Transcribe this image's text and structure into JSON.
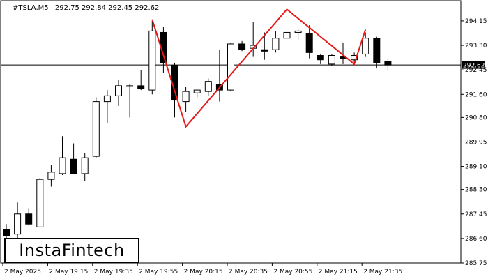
{
  "header": {
    "symbol": "#TSLA,M5",
    "ohlc": "292.75 292.84 292.45 292.62"
  },
  "logo": {
    "text": "InstaFintech"
  },
  "colors": {
    "pattern_line": "#e61919",
    "candle_up": "#ffffff",
    "candle_down": "#000000",
    "axis": "#000000"
  },
  "chart_data": {
    "type": "candlestick",
    "title": "",
    "xlabel": "",
    "ylabel": "",
    "ylim": [
      285.75,
      294.85
    ],
    "y_ticks": [
      "294.15",
      "293.30",
      "292.45",
      "291.60",
      "290.80",
      "289.95",
      "289.10",
      "288.30",
      "287.45",
      "286.60",
      "285.75"
    ],
    "x_ticks": [
      "2 May 2025",
      "2 May 19:15",
      "2 May 19:35",
      "2 May 19:55",
      "2 May 20:15",
      "2 May 20:35",
      "2 May 20:55",
      "2 May 21:15",
      "2 May 21:35"
    ],
    "x_tick_candle_index": [
      0,
      4,
      8,
      12,
      16,
      20,
      24,
      28,
      32
    ],
    "current_price": "292.62",
    "current_price_value": 292.62,
    "candles": [
      {
        "o": 286.9,
        "h": 287.1,
        "l": 286.6,
        "c": 286.7
      },
      {
        "o": 286.75,
        "h": 287.85,
        "l": 286.6,
        "c": 287.45
      },
      {
        "o": 287.45,
        "h": 287.65,
        "l": 287.05,
        "c": 287.1
      },
      {
        "o": 287.0,
        "h": 288.7,
        "l": 287.0,
        "c": 288.65
      },
      {
        "o": 288.65,
        "h": 289.15,
        "l": 288.4,
        "c": 288.9
      },
      {
        "o": 288.85,
        "h": 290.15,
        "l": 288.8,
        "c": 289.4
      },
      {
        "o": 289.35,
        "h": 289.9,
        "l": 288.85,
        "c": 288.85
      },
      {
        "o": 288.85,
        "h": 289.55,
        "l": 288.6,
        "c": 289.4
      },
      {
        "o": 289.45,
        "h": 291.5,
        "l": 289.4,
        "c": 291.35
      },
      {
        "o": 291.35,
        "h": 291.75,
        "l": 290.6,
        "c": 291.55
      },
      {
        "o": 291.55,
        "h": 292.1,
        "l": 291.2,
        "c": 291.9
      },
      {
        "o": 291.9,
        "h": 291.95,
        "l": 290.8,
        "c": 291.9
      },
      {
        "o": 291.9,
        "h": 292.45,
        "l": 291.75,
        "c": 291.8
      },
      {
        "o": 291.75,
        "h": 294.15,
        "l": 291.6,
        "c": 293.8
      },
      {
        "o": 293.75,
        "h": 293.95,
        "l": 292.35,
        "c": 292.7
      },
      {
        "o": 292.6,
        "h": 292.7,
        "l": 290.8,
        "c": 291.4
      },
      {
        "o": 291.35,
        "h": 291.85,
        "l": 291.0,
        "c": 291.7
      },
      {
        "o": 291.65,
        "h": 291.75,
        "l": 291.5,
        "c": 291.75
      },
      {
        "o": 291.7,
        "h": 292.15,
        "l": 291.55,
        "c": 292.05
      },
      {
        "o": 291.95,
        "h": 293.15,
        "l": 291.35,
        "c": 291.75
      },
      {
        "o": 291.75,
        "h": 293.4,
        "l": 291.7,
        "c": 293.35
      },
      {
        "o": 293.35,
        "h": 293.45,
        "l": 293.1,
        "c": 293.15
      },
      {
        "o": 293.2,
        "h": 294.1,
        "l": 292.9,
        "c": 293.3
      },
      {
        "o": 293.15,
        "h": 293.75,
        "l": 292.8,
        "c": 293.1
      },
      {
        "o": 293.15,
        "h": 293.8,
        "l": 293.05,
        "c": 293.55
      },
      {
        "o": 293.55,
        "h": 294.05,
        "l": 293.3,
        "c": 293.75
      },
      {
        "o": 293.75,
        "h": 293.9,
        "l": 293.5,
        "c": 293.8
      },
      {
        "o": 293.7,
        "h": 294.0,
        "l": 292.85,
        "c": 293.05
      },
      {
        "o": 292.95,
        "h": 293.0,
        "l": 292.65,
        "c": 292.8
      },
      {
        "o": 292.65,
        "h": 293.0,
        "l": 292.6,
        "c": 292.95
      },
      {
        "o": 292.9,
        "h": 293.4,
        "l": 292.65,
        "c": 292.85
      },
      {
        "o": 292.8,
        "h": 293.05,
        "l": 292.65,
        "c": 292.95
      },
      {
        "o": 293.0,
        "h": 293.75,
        "l": 292.9,
        "c": 293.55
      },
      {
        "o": 293.55,
        "h": 293.6,
        "l": 292.5,
        "c": 292.7
      },
      {
        "o": 292.75,
        "h": 292.84,
        "l": 292.45,
        "c": 292.62
      }
    ],
    "pattern": {
      "name": "",
      "points": [
        {
          "candle": 13,
          "price": 294.2
        },
        {
          "candle": 16,
          "price": 290.48
        },
        {
          "candle": 25,
          "price": 294.55
        },
        {
          "candle": 31,
          "price": 292.65
        },
        {
          "candle": 32,
          "price": 293.85
        }
      ]
    }
  }
}
